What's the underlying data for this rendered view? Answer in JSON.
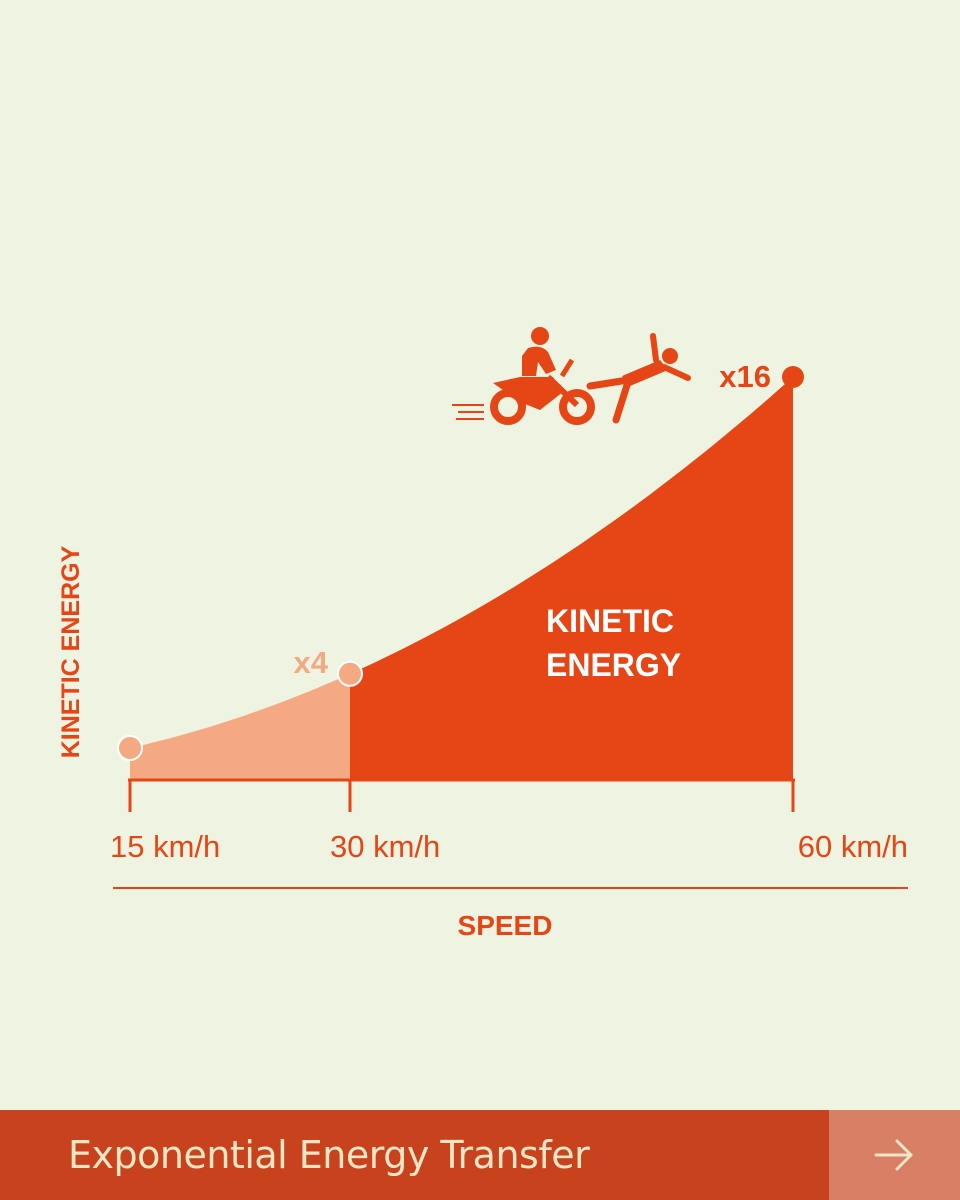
{
  "chart_data": {
    "type": "area",
    "ylabel": "KINETIC ENERGY",
    "xlabel": "SPEED",
    "x": [
      15,
      30,
      60
    ],
    "x_tick_labels": [
      "15 km/h",
      "30 km/h",
      "60 km/h"
    ],
    "multipliers": [
      1,
      4,
      16
    ],
    "point_labels": [
      "",
      "x4",
      "x16"
    ],
    "area_label_lines": [
      "KINETIC",
      "ENERGY"
    ],
    "colors": {
      "primary": "#e64515",
      "light": "#f4a983",
      "background": "#eef4e1"
    },
    "icon": "motorcycle-collision-icon"
  },
  "footer": {
    "title": "Exponential Energy Transfer",
    "next_icon": "arrow-right-icon"
  }
}
